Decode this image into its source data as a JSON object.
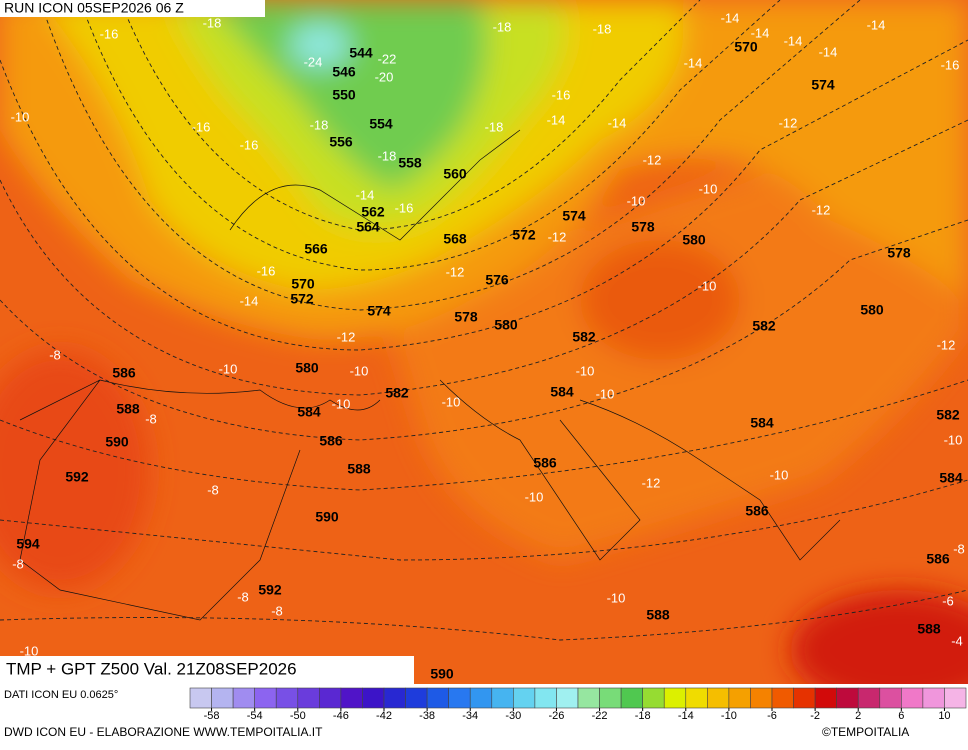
{
  "header": {
    "run": "RUN ICON 05SEP2026 06 Z"
  },
  "map": {
    "gpt_labels": [
      544,
      546,
      550,
      554,
      556,
      558,
      560,
      562,
      564,
      566,
      568,
      570,
      572,
      574,
      572,
      574,
      576,
      578,
      580,
      578,
      580,
      582,
      580,
      582,
      584,
      586,
      588,
      590,
      592,
      594,
      590,
      588,
      586,
      582,
      580,
      578,
      574,
      570,
      584,
      586,
      584,
      586,
      582,
      584,
      586,
      588,
      588,
      590,
      592
    ],
    "tmp_labels": [
      -18,
      -16,
      -24,
      -22,
      -20,
      -18,
      -16,
      -16,
      -18,
      -18,
      -16,
      -14,
      -14,
      -18,
      -18,
      -14,
      -14,
      -14,
      -14,
      -14,
      -16,
      -14,
      -12,
      -12,
      -10,
      -10,
      -12,
      -12,
      -14,
      -16,
      -12,
      -16,
      -14,
      -12,
      -10,
      -12,
      -10,
      -10,
      -10,
      -10,
      -10,
      -10,
      -10,
      -10,
      -12,
      -10,
      -8,
      -8,
      -8,
      -8,
      -8,
      -8,
      -10,
      -8,
      -6,
      -4,
      -10,
      -10
    ]
  },
  "footer": {
    "title": "TMP + GPT Z500 Val. 21Z08SEP2026",
    "source": "DATI ICON EU 0.0625°",
    "credit": "DWD ICON EU - ELABORAZIONE WWW.TEMPOITALIA.IT",
    "brand": "©TEMPOITALIA"
  },
  "colorbar": {
    "lim": [
      -60,
      12
    ],
    "ticks": [
      -58,
      -54,
      -50,
      -46,
      -42,
      -38,
      -34,
      -30,
      -26,
      -22,
      -18,
      -14,
      -10,
      -6,
      -2,
      2,
      6,
      10
    ],
    "colors": [
      "#c8c8f0",
      "#b4b4f0",
      "#a08cf0",
      "#8c64f0",
      "#7850e6",
      "#6a3cdc",
      "#5a28d2",
      "#5014c8",
      "#3c14c8",
      "#2828d2",
      "#1e3cdc",
      "#1e5ae6",
      "#2878f0",
      "#3296f0",
      "#46b4f0",
      "#64d2f0",
      "#82e6f0",
      "#a0f0f0",
      "#96e6a0",
      "#78dc78",
      "#50c850",
      "#96dc32",
      "#dcf000",
      "#f0dc00",
      "#f5be00",
      "#f5a000",
      "#f58200",
      "#f05a00",
      "#e63200",
      "#d20a0a",
      "#be0a3c",
      "#c8286e",
      "#dc50a0",
      "#f078c8",
      "#f096dc",
      "#f5b4e6"
    ]
  }
}
